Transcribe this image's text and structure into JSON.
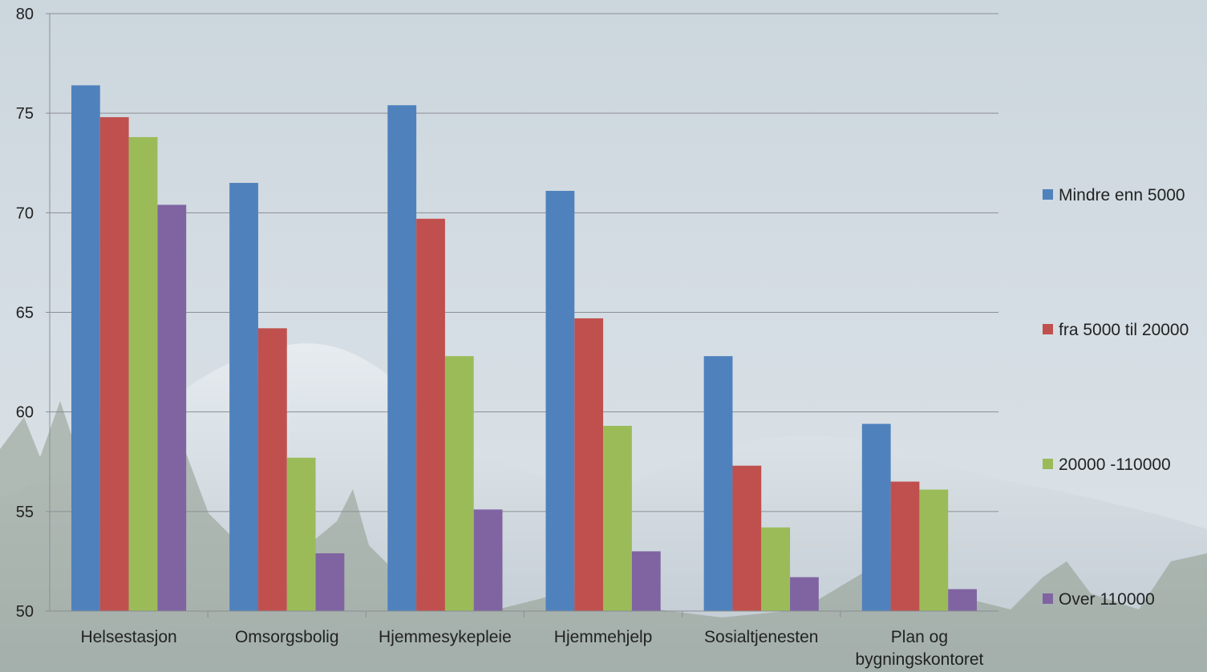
{
  "chart_data": {
    "type": "bar",
    "title": "",
    "xlabel": "",
    "ylabel": "",
    "ylim": [
      50,
      80
    ],
    "yticks": [
      50,
      55,
      60,
      65,
      70,
      75,
      80
    ],
    "grid": true,
    "legend_position": "right",
    "categories": [
      "Helsestasjon",
      "Omsorgsbolig",
      "Hjemmesykepleie",
      "Hjemmehjelp",
      "Sosialtjenesten",
      "Plan og bygningskontoret"
    ],
    "category_display_lines": [
      [
        "Helsestasjon"
      ],
      [
        "Omsorgsbolig"
      ],
      [
        "Hjemmesykepleie"
      ],
      [
        "Hjemmehjelp"
      ],
      [
        "Sosialtjenesten"
      ],
      [
        "Plan og",
        "bygningskontoret"
      ]
    ],
    "series": [
      {
        "name": "Mindre enn 5000",
        "color": "#4F81BD",
        "values": [
          76.4,
          71.5,
          75.4,
          71.1,
          62.8,
          59.4
        ]
      },
      {
        "name": "fra 5000 til 20000",
        "color": "#C0504D",
        "values": [
          74.8,
          64.2,
          69.7,
          64.7,
          57.3,
          56.5
        ]
      },
      {
        "name": "20000 -110000",
        "color": "#9BBB59",
        "values": [
          73.8,
          57.7,
          62.8,
          59.3,
          54.2,
          56.1
        ]
      },
      {
        "name": "Over 110000",
        "color": "#8064A2",
        "values": [
          70.4,
          52.9,
          55.1,
          53.0,
          51.7,
          51.1
        ]
      }
    ]
  }
}
